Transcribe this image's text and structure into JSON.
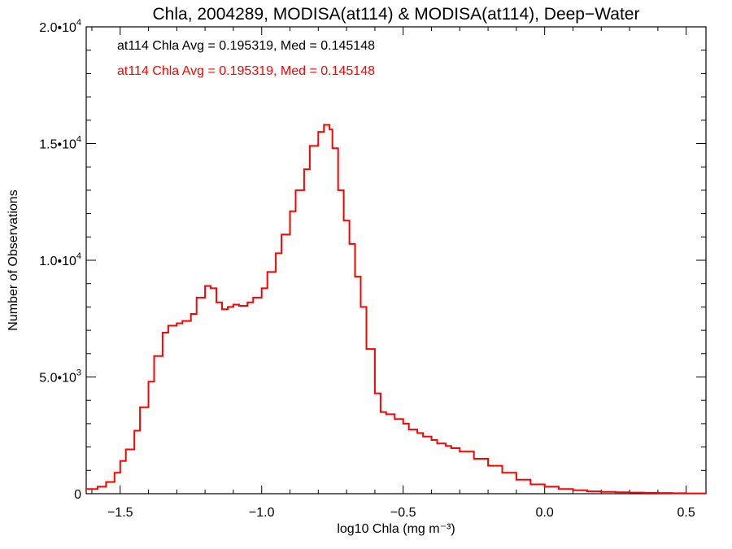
{
  "chart_data": {
    "type": "histogram-step",
    "title": "Chla, 2004289, MODISA(at114) & MODISA(at114), Deep−Water",
    "xlabel": "log10 Chla (mg m⁻³)",
    "ylabel": "Number of Observations",
    "xlim": [
      -1.62,
      0.57
    ],
    "ylim": [
      0,
      20000
    ],
    "grid": false,
    "x_ticks": [
      {
        "value": -1.5,
        "label": "−1.5"
      },
      {
        "value": -1.0,
        "label": "−1.0"
      },
      {
        "value": -0.5,
        "label": "−0.5"
      },
      {
        "value": 0.0,
        "label": "0.0"
      },
      {
        "value": 0.5,
        "label": "0.5"
      }
    ],
    "y_ticks": [
      {
        "value": 0,
        "mant": "0",
        "exp": ""
      },
      {
        "value": 5000,
        "mant": "5.0•10",
        "exp": "3"
      },
      {
        "value": 10000,
        "mant": "1.0•10",
        "exp": "4"
      },
      {
        "value": 15000,
        "mant": "1.5•10",
        "exp": "4"
      },
      {
        "value": 20000,
        "mant": "2.0•10",
        "exp": "4"
      }
    ],
    "annotations": [
      {
        "text": "at114 Chla Avg = 0.195319, Med = 0.145148",
        "color": "#000000"
      },
      {
        "text": "at114 Chla Avg = 0.195319, Med = 0.145148",
        "color": "#ff0000"
      }
    ],
    "series": [
      {
        "color": "#ff0000",
        "x": [
          -1.62,
          -1.58,
          -1.55,
          -1.52,
          -1.5,
          -1.48,
          -1.45,
          -1.43,
          -1.4,
          -1.38,
          -1.35,
          -1.33,
          -1.3,
          -1.28,
          -1.25,
          -1.23,
          -1.2,
          -1.18,
          -1.16,
          -1.14,
          -1.12,
          -1.1,
          -1.08,
          -1.05,
          -1.03,
          -1.0,
          -0.98,
          -0.95,
          -0.93,
          -0.9,
          -0.88,
          -0.85,
          -0.83,
          -0.8,
          -0.78,
          -0.76,
          -0.75,
          -0.73,
          -0.71,
          -0.69,
          -0.67,
          -0.65,
          -0.63,
          -0.6,
          -0.58,
          -0.56,
          -0.53,
          -0.5,
          -0.48,
          -0.45,
          -0.43,
          -0.4,
          -0.38,
          -0.35,
          -0.33,
          -0.3,
          -0.25,
          -0.2,
          -0.15,
          -0.1,
          -0.05,
          0.0,
          0.05,
          0.1,
          0.15,
          0.2,
          0.25,
          0.3,
          0.35,
          0.4,
          0.45,
          0.5,
          0.57
        ],
        "values": [
          200,
          300,
          500,
          900,
          1400,
          1900,
          2700,
          3700,
          4800,
          5900,
          6900,
          7200,
          7300,
          7400,
          7700,
          8400,
          8900,
          8800,
          8200,
          7900,
          8000,
          8100,
          8050,
          8200,
          8400,
          8800,
          9500,
          10300,
          11100,
          12100,
          13000,
          13900,
          14900,
          15500,
          15800,
          15600,
          14800,
          13000,
          11700,
          10700,
          9300,
          8000,
          6200,
          4300,
          3500,
          3400,
          3200,
          3000,
          2750,
          2600,
          2450,
          2300,
          2150,
          2050,
          1950,
          1800,
          1500,
          1200,
          900,
          600,
          400,
          300,
          200,
          150,
          100,
          80,
          60,
          50,
          40,
          30,
          20,
          15,
          10
        ]
      }
    ]
  }
}
